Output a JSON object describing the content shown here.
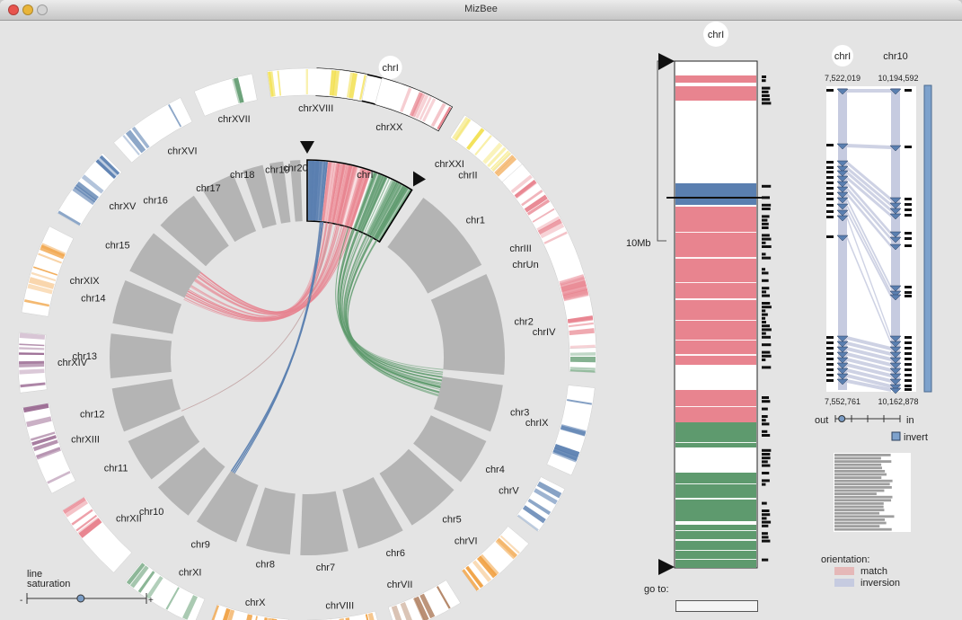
{
  "window": {
    "title": "MizBee",
    "buttons": [
      "close",
      "minimize",
      "zoom"
    ],
    "button_colors": {
      "close": "#e8544e",
      "minimize": "#e9b53a",
      "zoom": "#d3d3d3"
    }
  },
  "colors": {
    "pink": "#e8848f",
    "blue": "#5a7fb0",
    "green": "#5e9a6e",
    "orange": "#f0a040",
    "brown": "#b08060",
    "yellow": "#f2e050",
    "purple": "#9a6a92",
    "gray_block": "#b4b4b4",
    "match": "#e5b8b8",
    "inversion": "#c6cbe0"
  },
  "genome_view": {
    "outer_chromosomes": [
      {
        "name": "chrI",
        "color": "multi",
        "selected": true
      },
      {
        "name": "chrII",
        "color": "orange"
      },
      {
        "name": "chrIII",
        "color": "brown"
      },
      {
        "name": "chrIV",
        "color": "green"
      },
      {
        "name": "chrIX",
        "color": "blue"
      },
      {
        "name": "chrV",
        "color": "blue"
      },
      {
        "name": "chrVI",
        "color": "orange"
      },
      {
        "name": "chrVII",
        "color": "brown"
      },
      {
        "name": "chrVIII",
        "color": "orange"
      },
      {
        "name": "chrX",
        "color": "orange"
      },
      {
        "name": "chrXI",
        "color": "green"
      },
      {
        "name": "chrXII",
        "color": "pink"
      },
      {
        "name": "chrXIII",
        "color": "purple"
      },
      {
        "name": "chrXIV",
        "color": "purple"
      },
      {
        "name": "chrXIX",
        "color": "orange"
      },
      {
        "name": "chrXV",
        "color": "blue"
      },
      {
        "name": "chrXVI",
        "color": "blue"
      },
      {
        "name": "chrXVII",
        "color": "green"
      },
      {
        "name": "chrXVIII",
        "color": "yellow"
      },
      {
        "name": "chrXX",
        "color": "pink"
      },
      {
        "name": "chrXXI",
        "color": "yellow"
      },
      {
        "name": "chrUn",
        "color": "pink"
      }
    ],
    "inner_chromosomes": [
      "chrI",
      "chr1",
      "chr2",
      "chr3",
      "chr4",
      "chr5",
      "chr6",
      "chr7",
      "chr8",
      "chr9",
      "chr10",
      "chr11",
      "chr12",
      "chr13",
      "chr14",
      "chr15",
      "chr16",
      "chr17",
      "chr18",
      "chr19",
      "chr20",
      "chr21"
    ],
    "selected_inner": "chrI",
    "center_label": "chrI",
    "line_saturation": {
      "label_line1": "line",
      "label_line2": "saturation",
      "minus": "-",
      "plus": "+",
      "value": 0.45
    }
  },
  "chromosome_view": {
    "title": "chrI",
    "scale_label": "10Mb",
    "goto_label": "go to:",
    "goto_value": ""
  },
  "block_view": {
    "left_chrom": "chrI",
    "right_chrom": "chr10",
    "left_top": "7,522,019",
    "right_top": "10,194,592",
    "left_bottom": "7,552,761",
    "right_bottom": "10,162,878",
    "zoom_out_label": "out",
    "zoom_in_label": "in",
    "zoom_value": 0.1,
    "invert_label": "invert",
    "invert_checked": true
  },
  "legend": {
    "title": "orientation:",
    "items": [
      {
        "label": "match",
        "color": "#e5b8b8"
      },
      {
        "label": "inversion",
        "color": "#c6cbe0"
      }
    ]
  }
}
